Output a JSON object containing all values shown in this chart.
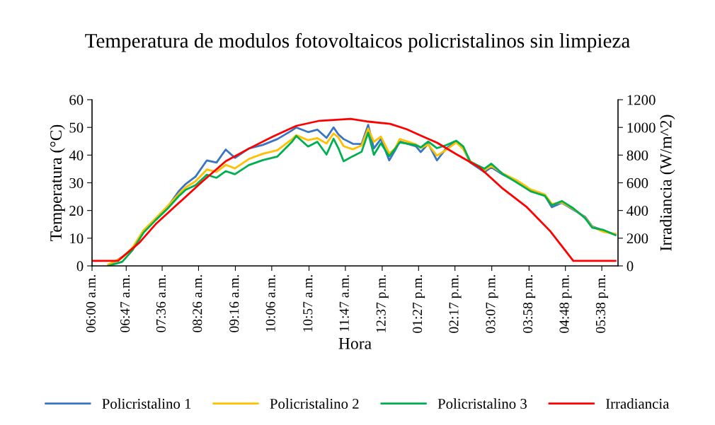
{
  "chart_data": {
    "type": "line",
    "title": "Temperatura de modulos fotovoltaicos policristalinos sin limpieza",
    "xlabel": "Hora",
    "ylabel": "Temperatura (°C)",
    "y2label": "Irradiancia (W/m^2)",
    "xlim": [
      6,
      18
    ],
    "xticks": [
      {
        "value": 6.0,
        "label": "06:00 a.m."
      },
      {
        "value": 6.78,
        "label": "06:47 a.m."
      },
      {
        "value": 7.6,
        "label": "07:36 a.m."
      },
      {
        "value": 8.43,
        "label": "08:26 a.m."
      },
      {
        "value": 9.27,
        "label": "09:16 a.m."
      },
      {
        "value": 10.1,
        "label": "10:06 a.m."
      },
      {
        "value": 10.95,
        "label": "10:57 a.m."
      },
      {
        "value": 11.78,
        "label": "11:47 a.m."
      },
      {
        "value": 12.62,
        "label": "12:37 p.m."
      },
      {
        "value": 13.45,
        "label": "01:27 p.m."
      },
      {
        "value": 14.28,
        "label": "02:17 p.m."
      },
      {
        "value": 15.12,
        "label": "03:07 p.m."
      },
      {
        "value": 15.97,
        "label": "03:58 p.m."
      },
      {
        "value": 16.8,
        "label": "04:48 p.m."
      },
      {
        "value": 17.63,
        "label": "05:38 p.m."
      }
    ],
    "ylim": [
      0,
      60
    ],
    "yticks": [
      0,
      10,
      20,
      30,
      40,
      50,
      60
    ],
    "y2lim": [
      0,
      1200
    ],
    "y2ticks": [
      0,
      200,
      400,
      600,
      800,
      1000,
      1200
    ],
    "grid": false,
    "legend": "bottom",
    "marker": "none",
    "line_style": "solid",
    "series": [
      {
        "name": "Policristalino 1",
        "color": "#3a75c4",
        "x": [
          6.37,
          6.69,
          6.92,
          7.17,
          7.45,
          7.72,
          7.98,
          8.14,
          8.36,
          8.62,
          8.84,
          9.05,
          9.26,
          9.58,
          9.9,
          10.23,
          10.55,
          10.66,
          10.93,
          11.14,
          11.35,
          11.51,
          11.62,
          11.74,
          11.95,
          12.15,
          12.3,
          12.43,
          12.59,
          12.78,
          12.91,
          13.02,
          13.39,
          13.5,
          13.67,
          13.87,
          14.08,
          14.31,
          14.47,
          14.63,
          14.95,
          15.11,
          15.37,
          15.69,
          16.01,
          16.33,
          16.49,
          16.72,
          16.98,
          17.25,
          17.41,
          17.68,
          17.94
        ],
        "values": [
          0,
          3.3,
          6.1,
          12.5,
          16.8,
          21.2,
          27,
          29.6,
          32.2,
          38.1,
          37.3,
          42,
          39,
          42.4,
          43.7,
          45.8,
          48.8,
          50,
          48.3,
          49.2,
          46.2,
          50,
          47.5,
          45.8,
          44.1,
          44,
          50.9,
          42.4,
          45.8,
          38.1,
          41.6,
          44.9,
          43.2,
          41.1,
          44.1,
          38.1,
          42.4,
          45,
          42.4,
          37.3,
          33.9,
          35.6,
          33,
          30.5,
          27,
          25.4,
          21.2,
          22.8,
          20.3,
          17.7,
          14.3,
          12.6,
          11.3
        ]
      },
      {
        "name": "Policristalino 2",
        "color": "#ffc000",
        "x": [
          6.37,
          6.69,
          6.92,
          7.17,
          7.45,
          7.72,
          7.98,
          8.14,
          8.36,
          8.62,
          8.84,
          9.05,
          9.26,
          9.58,
          9.9,
          10.23,
          10.55,
          10.66,
          10.93,
          11.14,
          11.35,
          11.51,
          11.62,
          11.74,
          11.95,
          12.15,
          12.3,
          12.43,
          12.59,
          12.78,
          12.91,
          13.02,
          13.39,
          13.5,
          13.67,
          13.87,
          14.08,
          14.31,
          14.47,
          14.63,
          14.95,
          15.11,
          15.37,
          15.69,
          16.01,
          16.33,
          16.49,
          16.72,
          16.98,
          17.25,
          17.41,
          17.68,
          17.94
        ],
        "values": [
          0.5,
          3,
          6.5,
          12.8,
          17.2,
          21.5,
          26,
          28.4,
          30.5,
          34.8,
          33.9,
          36.5,
          35.2,
          38.6,
          40.5,
          41.8,
          45.6,
          47.2,
          45.4,
          46.1,
          44.2,
          47.8,
          46.4,
          43.2,
          42.1,
          43.5,
          49.6,
          44.8,
          46.7,
          40.6,
          42.3,
          45.8,
          43.9,
          42.6,
          43.8,
          39.8,
          41.9,
          44.6,
          42.1,
          37.8,
          34.5,
          36.1,
          33.4,
          30.9,
          27.6,
          25.8,
          22.4,
          22.9,
          20.6,
          17.4,
          14.1,
          12.2,
          11.6
        ]
      },
      {
        "name": "Policristalino 3",
        "color": "#00b050",
        "x": [
          6.37,
          6.69,
          6.92,
          7.17,
          7.45,
          7.72,
          7.98,
          8.14,
          8.36,
          8.62,
          8.84,
          9.05,
          9.26,
          9.58,
          9.9,
          10.23,
          10.55,
          10.66,
          10.93,
          11.14,
          11.35,
          11.51,
          11.62,
          11.74,
          11.95,
          12.15,
          12.3,
          12.43,
          12.59,
          12.78,
          12.91,
          13.02,
          13.39,
          13.5,
          13.67,
          13.87,
          14.08,
          14.31,
          14.47,
          14.63,
          14.95,
          15.11,
          15.37,
          15.69,
          16.01,
          16.33,
          16.49,
          16.72,
          16.98,
          17.25,
          17.41,
          17.68,
          17.94
        ],
        "values": [
          0,
          1.5,
          5.6,
          11.9,
          16.5,
          20.6,
          25.2,
          27.5,
          29.1,
          32.9,
          31.8,
          34.2,
          33.1,
          36.4,
          38.2,
          39.5,
          44.6,
          46.9,
          43.1,
          44.8,
          40.2,
          45.9,
          42.5,
          37.8,
          39.6,
          41.2,
          48.1,
          40.1,
          44.3,
          39.6,
          42.2,
          44.6,
          43.6,
          42.8,
          44.9,
          42.5,
          43.6,
          45.2,
          43.1,
          37.6,
          35.1,
          36.9,
          33.2,
          30.1,
          26.9,
          25.3,
          21.9,
          23.4,
          20.8,
          17.2,
          13.8,
          12.9,
          11.1
        ]
      },
      {
        "name": "Irradiancia",
        "color": "#ff0000",
        "axis": "y2",
        "x": [
          6.0,
          6.59,
          7.08,
          7.45,
          7.98,
          8.52,
          9.05,
          9.58,
          10.13,
          10.66,
          11.19,
          11.9,
          12.27,
          12.8,
          13.18,
          13.5,
          13.87,
          14.31,
          14.84,
          15.37,
          15.92,
          16.45,
          16.98,
          17.94
        ],
        "values": [
          36,
          36,
          168,
          301,
          454,
          610,
          756,
          847,
          934,
          1011,
          1048,
          1062,
          1043,
          1026,
          987,
          941,
          890,
          807,
          711,
          558,
          424,
          252,
          36,
          36
        ]
      }
    ]
  }
}
